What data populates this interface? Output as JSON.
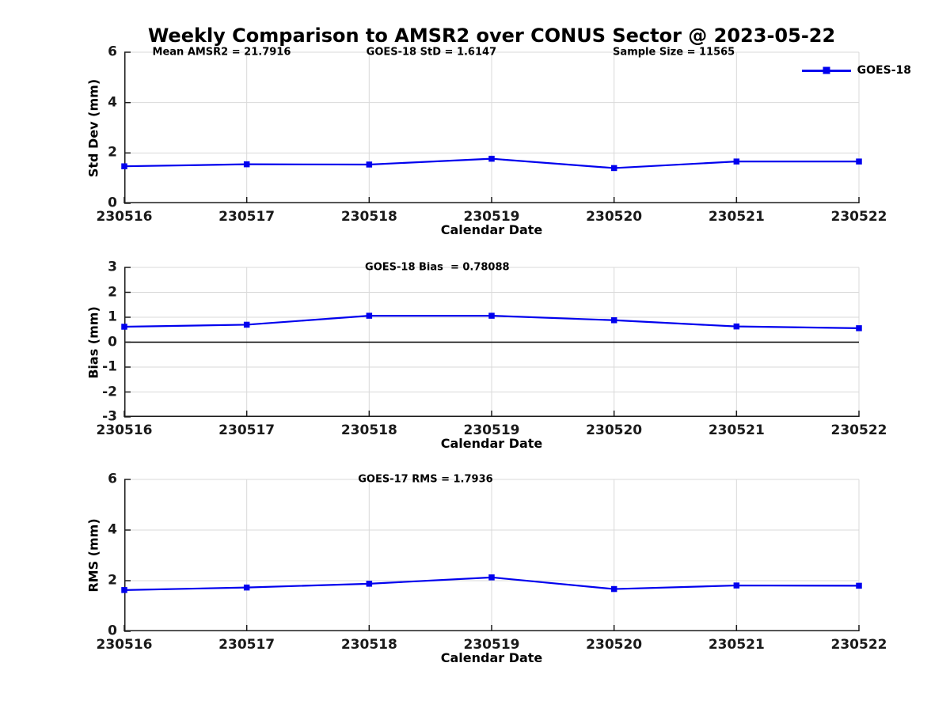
{
  "title": "Weekly Comparison to AMSR2 over CONUS Sector @ 2023-05-22",
  "colors": {
    "line": "#0000EE",
    "grid": "#D9D9D9",
    "axis": "#1A1A1A",
    "zero": "#000000"
  },
  "chart_data": [
    {
      "type": "line",
      "ylabel": "Std Dev (mm)",
      "xlabel": "Calendar Date",
      "categories": [
        "230516",
        "230517",
        "230518",
        "230519",
        "230520",
        "230521",
        "230522"
      ],
      "series": [
        {
          "name": "GOES-18",
          "values": [
            1.47,
            1.55,
            1.54,
            1.77,
            1.4,
            1.66,
            1.66
          ]
        }
      ],
      "ylim": [
        0,
        6
      ],
      "yticks": [
        0,
        2,
        4,
        6
      ],
      "grid": true,
      "annotations": [
        {
          "text": "Mean AMSR2 = 21.7916"
        },
        {
          "text": "GOES-18 StD = 1.6147"
        },
        {
          "text": "Sample Size = 11565"
        }
      ],
      "legend": {
        "label": "GOES-18",
        "position": "top-right"
      }
    },
    {
      "type": "line",
      "ylabel": "Bias (mm)",
      "xlabel": "Calendar Date",
      "categories": [
        "230516",
        "230517",
        "230518",
        "230519",
        "230520",
        "230521",
        "230522"
      ],
      "series": [
        {
          "name": "GOES-18",
          "values": [
            0.62,
            0.7,
            1.06,
            1.06,
            0.88,
            0.63,
            0.56
          ]
        }
      ],
      "ylim": [
        -3,
        3
      ],
      "yticks": [
        -3,
        -2,
        -1,
        0,
        1,
        2,
        3
      ],
      "grid": true,
      "zero_line": true,
      "annotations": [
        {
          "text": "GOES-18 Bias  = 0.78088"
        }
      ]
    },
    {
      "type": "line",
      "ylabel": "RMS (mm)",
      "xlabel": "Calendar Date",
      "categories": [
        "230516",
        "230517",
        "230518",
        "230519",
        "230520",
        "230521",
        "230522"
      ],
      "series": [
        {
          "name": "GOES-18",
          "values": [
            1.63,
            1.73,
            1.88,
            2.13,
            1.67,
            1.81,
            1.8
          ]
        }
      ],
      "ylim": [
        0,
        6
      ],
      "yticks": [
        0,
        2,
        4,
        6
      ],
      "grid": true,
      "annotations": [
        {
          "text": "GOES-17 RMS = 1.7936"
        }
      ]
    }
  ]
}
